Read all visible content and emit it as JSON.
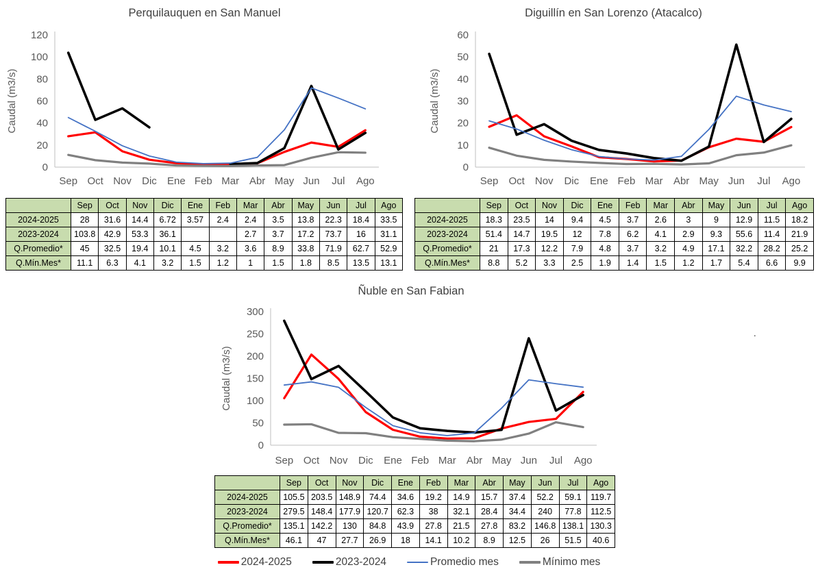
{
  "colors": {
    "red": "#FF0000",
    "black": "#000000",
    "blue": "#4472C4",
    "gray": "#808080",
    "axis_line": "#BFBFBF",
    "tick_text": "#595959",
    "title_text": "#404040",
    "table_header_bg": "#C8DCAE",
    "table_border": "#000000"
  },
  "legend": {
    "items": [
      {
        "label": "2024-2025",
        "color": "#FF0000",
        "thickness": 3.5
      },
      {
        "label": "2023-2024",
        "color": "#000000",
        "thickness": 4
      },
      {
        "label": "Promedio mes",
        "color": "#4472C4",
        "thickness": 2
      },
      {
        "label": "Mínimo mes",
        "color": "#808080",
        "thickness": 3.5
      }
    ]
  },
  "stray_dot": ".",
  "chart_data": [
    {
      "type": "line",
      "title": "Perquilauquen en San Manuel",
      "xlabel": "",
      "ylabel": "Caudal (m3/s)",
      "categories": [
        "Sep",
        "Oct",
        "Nov",
        "Dic",
        "Ene",
        "Feb",
        "Mar",
        "Abr",
        "May",
        "Jun",
        "Jul",
        "Ago"
      ],
      "ylim": [
        0,
        120
      ],
      "ytick_step": 20,
      "grid": false,
      "legend_position": "none",
      "series": [
        {
          "name": "2024-2025",
          "color": "#FF0000",
          "width": 3.2,
          "values": [
            28,
            31.6,
            14.4,
            6.72,
            3.57,
            2.4,
            2.4,
            3.5,
            13.8,
            22.3,
            18.4,
            33.5
          ]
        },
        {
          "name": "2023-2024",
          "color": "#000000",
          "width": 3.6,
          "values": [
            103.8,
            42.9,
            53.3,
            36.1,
            null,
            null,
            2.7,
            3.7,
            17.2,
            73.7,
            16,
            31.1
          ]
        },
        {
          "name": "Promedio mes",
          "color": "#4472C4",
          "width": 1.8,
          "values": [
            45,
            32.5,
            19.4,
            10.1,
            4.5,
            3.2,
            3.6,
            8.9,
            33.8,
            71.9,
            62.7,
            52.9
          ]
        },
        {
          "name": "Mínimo mes",
          "color": "#808080",
          "width": 3.2,
          "values": [
            11.1,
            6.3,
            4.1,
            3.2,
            1.5,
            1.2,
            1,
            1.5,
            1.8,
            8.5,
            13.5,
            13.1
          ]
        }
      ],
      "table_row_labels": [
        "2024-2025",
        "2023-2024",
        "Q.Promedio*",
        "Q.Mín.Mes*"
      ]
    },
    {
      "type": "line",
      "title": "Diguillín en San Lorenzo (Atacalco)",
      "xlabel": "",
      "ylabel": "Caudal (m3/s)",
      "categories": [
        "Sep",
        "Oct",
        "Nov",
        "Dic",
        "Ene",
        "Feb",
        "Mar",
        "Abr",
        "May",
        "Jun",
        "Jul",
        "Ago"
      ],
      "ylim": [
        0,
        60
      ],
      "ytick_step": 10,
      "grid": false,
      "legend_position": "none",
      "series": [
        {
          "name": "2024-2025",
          "color": "#FF0000",
          "width": 3.2,
          "values": [
            18.3,
            23.5,
            14,
            9.4,
            4.5,
            3.7,
            2.6,
            3,
            9,
            12.9,
            11.5,
            18.2
          ]
        },
        {
          "name": "2023-2024",
          "color": "#000000",
          "width": 3.6,
          "values": [
            51.4,
            14.7,
            19.5,
            12,
            7.8,
            6.2,
            4.1,
            2.9,
            9.3,
            55.6,
            11.4,
            21.9
          ]
        },
        {
          "name": "Promedio mes",
          "color": "#4472C4",
          "width": 1.8,
          "values": [
            21,
            17.3,
            12.2,
            7.9,
            4.8,
            3.7,
            3.2,
            4.9,
            17.1,
            32.2,
            28.2,
            25.2
          ]
        },
        {
          "name": "Mínimo mes",
          "color": "#808080",
          "width": 3.2,
          "values": [
            8.8,
            5.2,
            3.3,
            2.5,
            1.9,
            1.4,
            1.5,
            1.2,
            1.7,
            5.4,
            6.6,
            9.9
          ]
        }
      ],
      "table_row_labels": [
        "2024-2025",
        "2023-2024",
        "Q.Promedio*",
        "Q.Mín.Mes*"
      ]
    },
    {
      "type": "line",
      "title": "Ñuble en San Fabian",
      "xlabel": "",
      "ylabel": "Caudal (m3/s)",
      "categories": [
        "Sep",
        "Oct",
        "Nov",
        "Dic",
        "Ene",
        "Feb",
        "Mar",
        "Abr",
        "May",
        "Jun",
        "Jul",
        "Ago"
      ],
      "ylim": [
        0,
        300
      ],
      "ytick_step": 50,
      "grid": false,
      "legend_position": "bottom",
      "series": [
        {
          "name": "2024-2025",
          "color": "#FF0000",
          "width": 3.2,
          "values": [
            105.5,
            203.5,
            148.9,
            74.4,
            34.6,
            19.2,
            14.9,
            15.7,
            37.4,
            52.2,
            59.1,
            119.7
          ]
        },
        {
          "name": "2023-2024",
          "color": "#000000",
          "width": 3.6,
          "values": [
            279.5,
            148.4,
            177.9,
            120.7,
            62.3,
            38,
            32.1,
            28.4,
            34.4,
            240,
            77.8,
            112.5
          ]
        },
        {
          "name": "Promedio mes",
          "color": "#4472C4",
          "width": 1.8,
          "values": [
            135.1,
            142.2,
            130,
            84.8,
            43.9,
            27.8,
            21.5,
            27.8,
            83.2,
            146.8,
            138.1,
            130.3
          ]
        },
        {
          "name": "Mínimo mes",
          "color": "#808080",
          "width": 3.2,
          "values": [
            46.1,
            47,
            27.7,
            26.9,
            18,
            14.1,
            10.2,
            8.9,
            12.5,
            26,
            51.5,
            40.6
          ]
        }
      ],
      "table_row_labels": [
        "2024-2025",
        "2023-2024",
        "Q.Promedio*",
        "Q.Mín.Mes*"
      ]
    }
  ]
}
